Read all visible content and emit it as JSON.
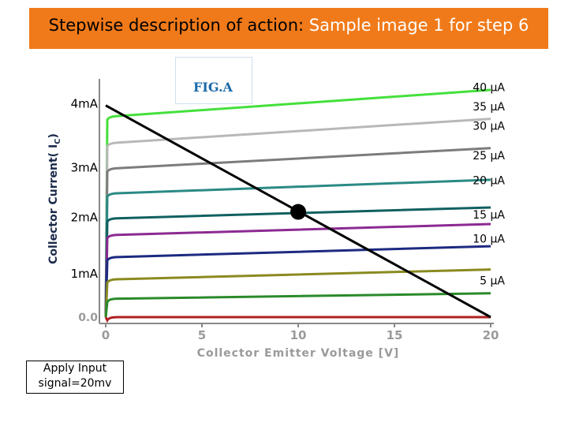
{
  "header": {
    "title_main": "Stepwise description of action: ",
    "title_sub": "Sample image 1  for step 6"
  },
  "chart_data": {
    "type": "line",
    "title": "FIG.A",
    "xlabel": "Collector Emitter Voltage [V]",
    "ylabel": "Collector Current( I",
    "ylabel_sub": "C",
    "ylabel_end": ")",
    "xlim": [
      0,
      20
    ],
    "ylim": [
      0,
      4.3
    ],
    "x_ticks": [
      0,
      5,
      10,
      15,
      20
    ],
    "x_tick_labels": [
      "0",
      "5",
      "10",
      "15",
      "20"
    ],
    "y_tick_labels": [
      {
        "label": "4mA",
        "y": 3.85
      },
      {
        "label": "3mA",
        "y": 2.7
      },
      {
        "label": "2mA",
        "y": 1.8
      },
      {
        "label": "1mA",
        "y": 0.78
      },
      {
        "label": "0.0",
        "y": 0.0
      }
    ],
    "series": [
      {
        "name": "40 µA",
        "color": "#44e03c",
        "values": [
          [
            0.2,
            3.62
          ],
          [
            20,
            4.1
          ]
        ]
      },
      {
        "name": "35 µA",
        "color": "#b8b8b8",
        "values": [
          [
            0.2,
            3.14
          ],
          [
            20,
            3.58
          ]
        ]
      },
      {
        "name": "30 µA",
        "color": "#7c7c7c",
        "values": [
          [
            0.2,
            2.68
          ],
          [
            20,
            3.05
          ]
        ]
      },
      {
        "name": "25 µA",
        "color": "#2a8a84",
        "values": [
          [
            0.2,
            2.23
          ],
          [
            20,
            2.48
          ]
        ]
      },
      {
        "name": "20 µA",
        "color": "#106060",
        "values": [
          [
            0.2,
            1.78
          ],
          [
            20,
            1.98
          ]
        ]
      },
      {
        "name": "15 µA",
        "color": "#8c2a92",
        "values": [
          [
            0.2,
            1.48
          ],
          [
            20,
            1.68
          ]
        ]
      },
      {
        "name": "10 µA",
        "color": "#1c2a80",
        "values": [
          [
            0.2,
            1.08
          ],
          [
            20,
            1.28
          ]
        ]
      },
      {
        "name": "5 µA",
        "color": "#8a8a20",
        "values": [
          [
            0.2,
            0.68
          ],
          [
            20,
            0.86
          ]
        ]
      },
      {
        "color": "#2a8a2a",
        "values": [
          [
            0.2,
            0.33
          ],
          [
            20,
            0.43
          ]
        ]
      },
      {
        "color": "#b02020",
        "values": [
          [
            0.2,
            0.0
          ],
          [
            20,
            0.0
          ]
        ]
      }
    ],
    "series_label_y": [
      4.15,
      3.8,
      3.45,
      2.92,
      2.47,
      1.85,
      1.42,
      0.66
    ],
    "load_line": {
      "from": [
        0.0,
        3.82
      ],
      "to": [
        20.0,
        0.0
      ],
      "color": "#000000"
    },
    "q_point": {
      "x": 10.0,
      "y": 1.9
    },
    "grid": false
  },
  "annotation": {
    "line1": "Apply Input",
    "line2": "signal=20mv"
  }
}
